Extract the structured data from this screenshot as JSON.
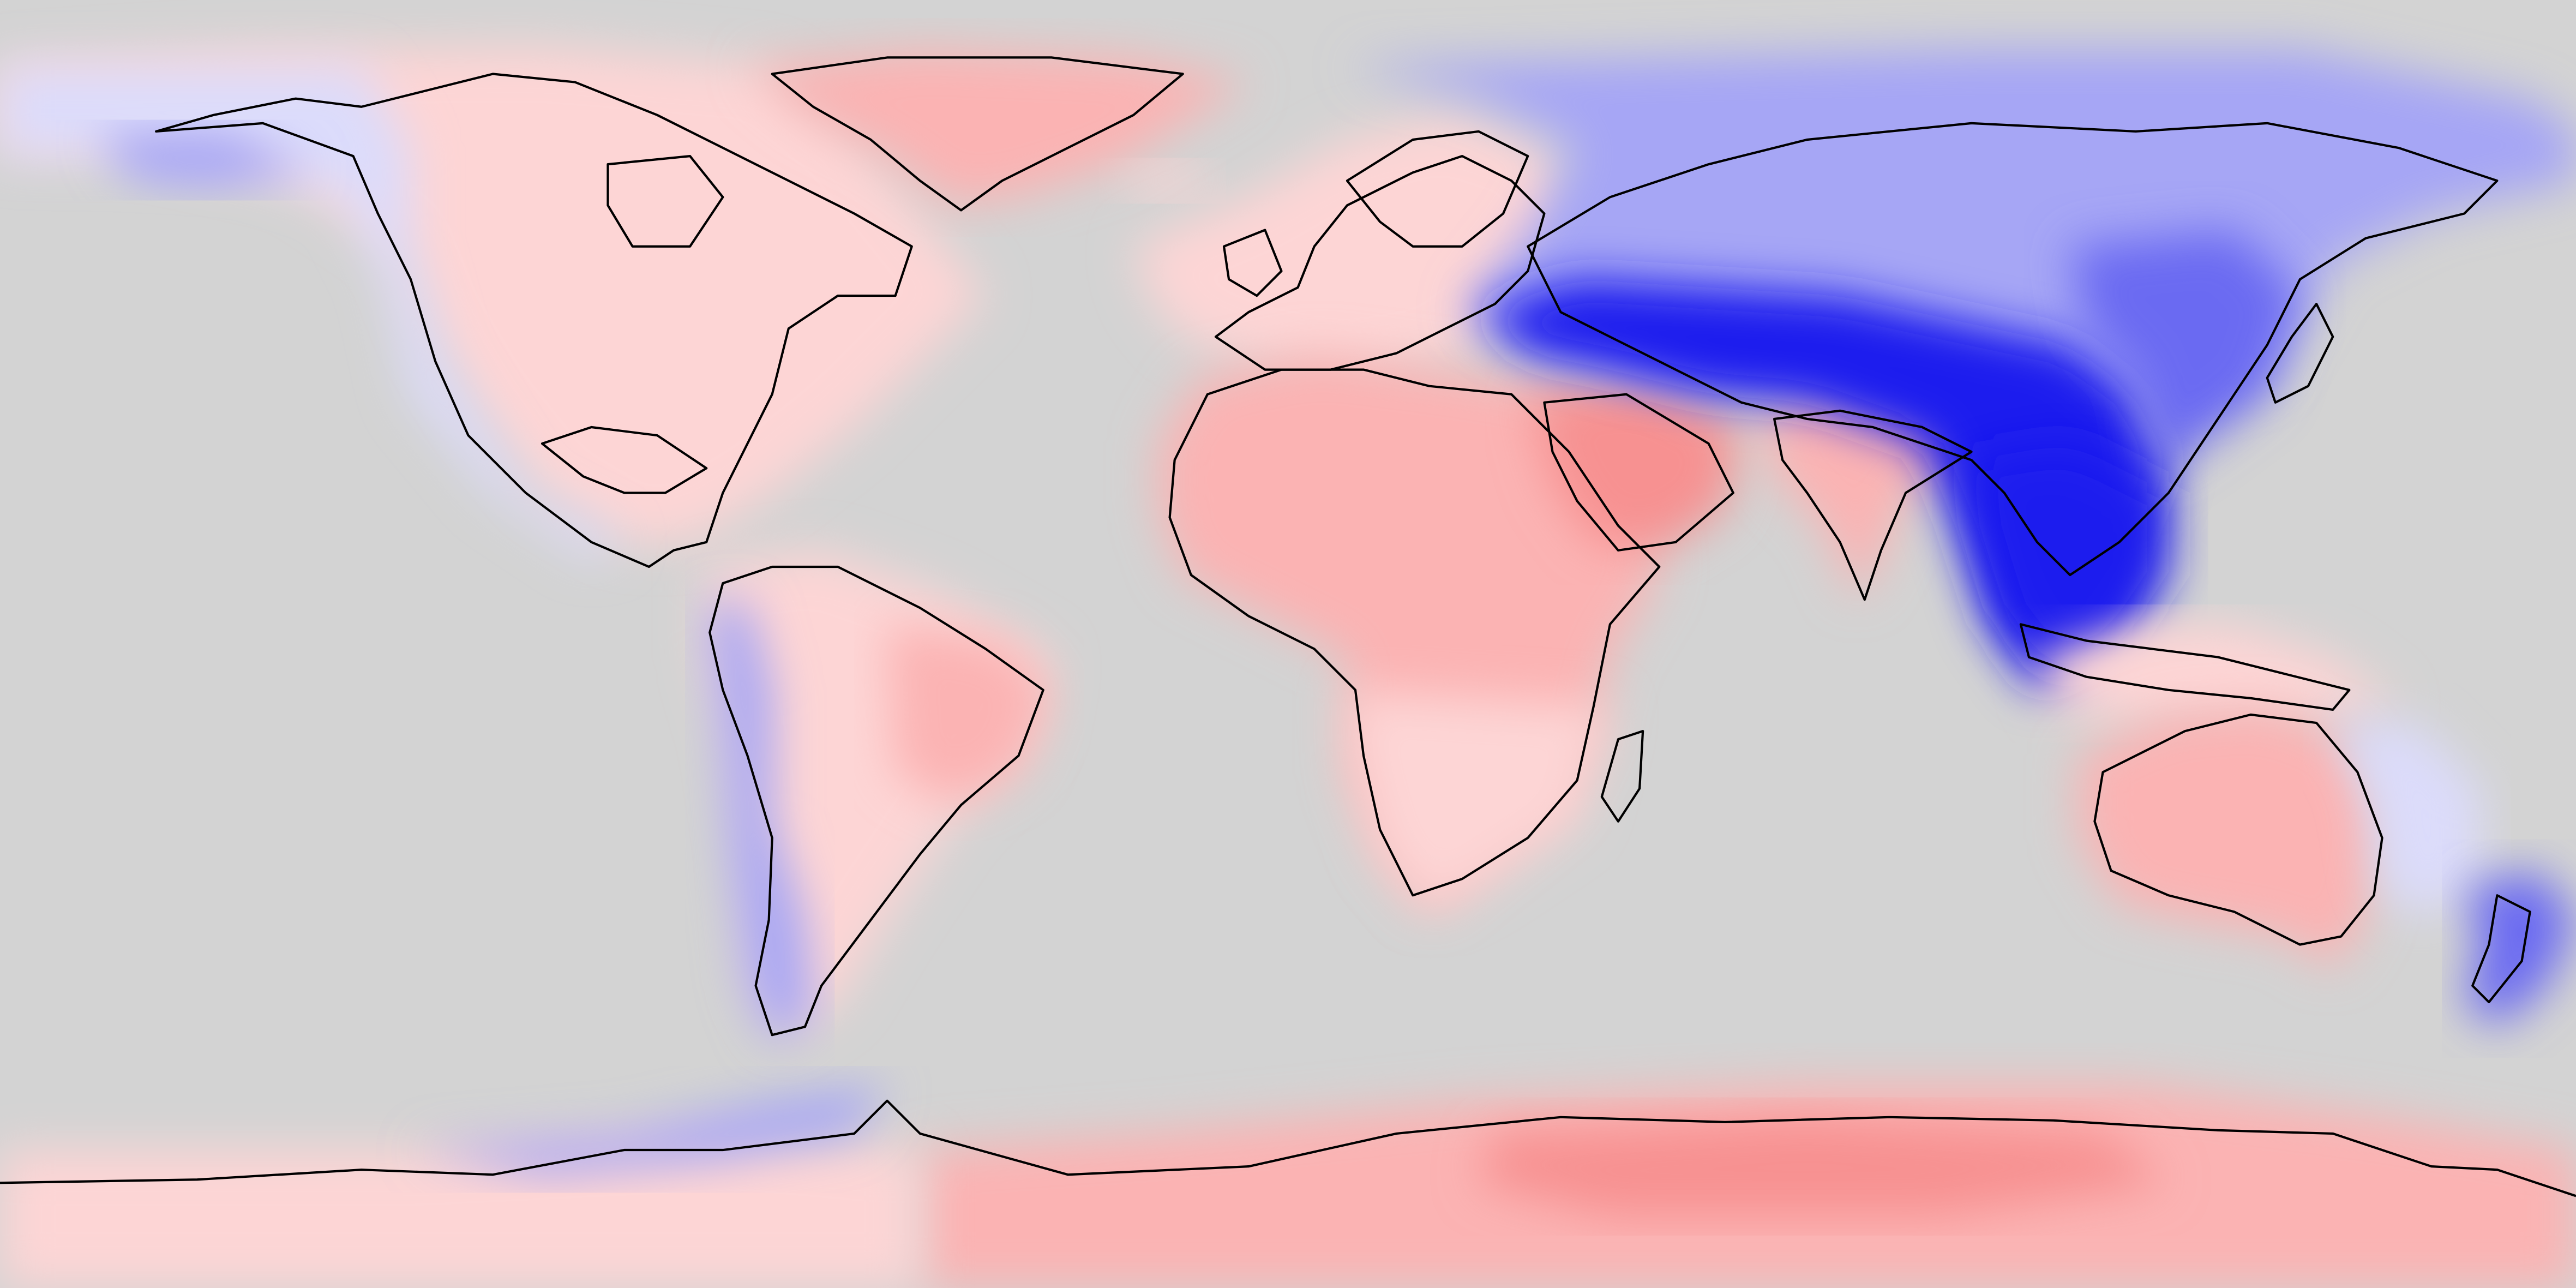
{
  "map": {
    "projection": "equirectangular",
    "extent_degrees": {
      "lon": [
        -180,
        180
      ],
      "lat": [
        -90,
        90
      ]
    },
    "colors": {
      "ocean": "#d3d3d3",
      "coastline": "#000000",
      "anomaly_ramp": {
        "strong_negative": "#1a1aee",
        "negative": "#6b6bf2",
        "weak_negative": "#a6a6f5",
        "slight_negative": "#dcdcfb",
        "neutral": "#fdf0f0",
        "slight_positive": "#fdd5d5",
        "positive": "#fbb3b3",
        "strong_positive": "#f79191"
      }
    },
    "regions": [
      {
        "name": "north-america",
        "tone": "slight_positive"
      },
      {
        "name": "alaska-pacific-coast",
        "tone": "slight_negative"
      },
      {
        "name": "greenland",
        "tone": "positive"
      },
      {
        "name": "europe",
        "tone": "slight_positive"
      },
      {
        "name": "africa",
        "tone": "positive"
      },
      {
        "name": "arabian-peninsula",
        "tone": "strong_positive"
      },
      {
        "name": "india",
        "tone": "positive"
      },
      {
        "name": "siberia",
        "tone": "weak_negative"
      },
      {
        "name": "central-asia",
        "tone": "strong_negative"
      },
      {
        "name": "south-east-asia",
        "tone": "strong_negative"
      },
      {
        "name": "south-america",
        "tone": "slight_positive"
      },
      {
        "name": "andes-patagonia",
        "tone": "weak_negative"
      },
      {
        "name": "australia",
        "tone": "positive"
      },
      {
        "name": "new-zealand",
        "tone": "negative"
      },
      {
        "name": "antarctica-east",
        "tone": "positive"
      },
      {
        "name": "antarctic-peninsula",
        "tone": "weak_negative"
      }
    ]
  }
}
